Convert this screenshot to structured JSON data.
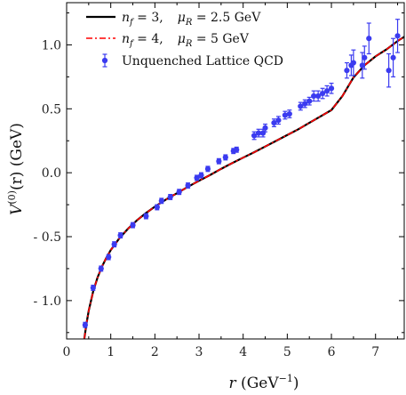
{
  "chart_data": {
    "type": "line",
    "xlabel": "r (GeV⁻¹)",
    "xlabel_parts": {
      "var": "r",
      "unit_open": " (GeV",
      "unit_exp": "−1",
      "unit_close": ")"
    },
    "ylabel": "V⁽⁰⁾(r) (GeV)",
    "ylabel_parts": {
      "main": "V",
      "sup": "(0)",
      "rest": "(r) (GeV)"
    },
    "xlim": [
      0,
      7.65
    ],
    "ylim": [
      -1.3,
      1.33
    ],
    "x_ticks": [
      0,
      1,
      2,
      3,
      4,
      5,
      6,
      7
    ],
    "x_tick_labels": [
      "0",
      "1",
      "2",
      "3",
      "4",
      "5",
      "6",
      "7"
    ],
    "y_ticks": [
      -1.0,
      -0.5,
      0.0,
      0.5,
      1.0
    ],
    "y_tick_labels": [
      "- 1.0",
      "- 0.5",
      "0.0",
      "0.5",
      "1.0"
    ],
    "grid": false,
    "legend_position": "top-left",
    "series": [
      {
        "name": "n_f = 3,    μ_R = 2.5 GeV",
        "label_parts": {
          "n": "n",
          "sub": "f",
          "eq": " = 3,",
          "mu": "μ",
          "musub": "R",
          "rest": " = 2.5 GeV"
        },
        "kind": "line",
        "style": "solid",
        "color": "#000000",
        "x": [
          0.4,
          0.45,
          0.5,
          0.6,
          0.7,
          0.8,
          0.9,
          1.0,
          1.2,
          1.4,
          1.6,
          1.8,
          2.0,
          2.25,
          2.5,
          2.75,
          3.0,
          3.25,
          3.5,
          3.75,
          4.0,
          4.25,
          4.5,
          4.75,
          5.0,
          5.25,
          5.5,
          5.75,
          6.0,
          6.25,
          6.5,
          6.75,
          7.0,
          7.25,
          7.5,
          7.65
        ],
        "y": [
          -1.3,
          -1.18,
          -1.08,
          -0.93,
          -0.82,
          -0.735,
          -0.665,
          -0.605,
          -0.51,
          -0.435,
          -0.37,
          -0.315,
          -0.265,
          -0.21,
          -0.16,
          -0.11,
          -0.063,
          -0.018,
          0.03,
          0.075,
          0.118,
          0.16,
          0.205,
          0.25,
          0.295,
          0.34,
          0.39,
          0.44,
          0.49,
          0.6,
          0.745,
          0.84,
          0.91,
          0.965,
          1.03,
          1.063
        ]
      },
      {
        "name": "n_f = 4,    μ_R = 5 GeV",
        "label_parts": {
          "n": "n",
          "sub": "f",
          "eq": " = 4,",
          "mu": "μ",
          "musub": "R",
          "rest": " = 5 GeV"
        },
        "kind": "line",
        "style": "dashdot",
        "color": "#ff0000",
        "x": [
          0.4,
          0.45,
          0.5,
          0.6,
          0.7,
          0.8,
          0.9,
          1.0,
          1.2,
          1.4,
          1.6,
          1.8,
          2.0,
          2.25,
          2.5,
          2.75,
          3.0,
          3.25,
          3.5,
          3.75,
          4.0,
          4.25,
          4.5,
          4.75,
          5.0,
          5.25,
          5.5,
          5.75,
          6.0,
          6.25,
          6.5,
          6.75,
          7.0,
          7.25,
          7.5,
          7.65
        ],
        "y": [
          -1.3,
          -1.18,
          -1.08,
          -0.93,
          -0.82,
          -0.735,
          -0.665,
          -0.605,
          -0.51,
          -0.435,
          -0.37,
          -0.315,
          -0.265,
          -0.21,
          -0.16,
          -0.11,
          -0.063,
          -0.018,
          0.03,
          0.075,
          0.118,
          0.16,
          0.205,
          0.25,
          0.295,
          0.34,
          0.39,
          0.44,
          0.49,
          0.6,
          0.745,
          0.84,
          0.91,
          0.965,
          1.03,
          1.063
        ]
      },
      {
        "name": "Unquenched Lattice QCD",
        "kind": "scatter_errorbar",
        "color": "#3b3bf0",
        "x": [
          0.42,
          0.6,
          0.78,
          0.95,
          1.08,
          1.22,
          1.5,
          1.8,
          2.05,
          2.15,
          2.35,
          2.55,
          2.75,
          2.95,
          3.05,
          3.2,
          3.45,
          3.6,
          3.78,
          3.85,
          4.25,
          4.35,
          4.45,
          4.5,
          4.7,
          4.8,
          4.95,
          5.05,
          5.3,
          5.4,
          5.5,
          5.6,
          5.7,
          5.8,
          5.9,
          6.0,
          6.35,
          6.45,
          6.5,
          6.7,
          6.75,
          6.85,
          7.3,
          7.4,
          7.5
        ],
        "y": [
          -1.19,
          -0.9,
          -0.75,
          -0.66,
          -0.56,
          -0.49,
          -0.41,
          -0.34,
          -0.27,
          -0.22,
          -0.19,
          -0.15,
          -0.1,
          -0.04,
          -0.02,
          0.03,
          0.09,
          0.12,
          0.17,
          0.18,
          0.29,
          0.31,
          0.31,
          0.35,
          0.39,
          0.41,
          0.45,
          0.46,
          0.52,
          0.54,
          0.56,
          0.6,
          0.6,
          0.62,
          0.64,
          0.66,
          0.8,
          0.84,
          0.86,
          0.84,
          0.9,
          1.05,
          0.8,
          0.9,
          1.07
        ],
        "err": [
          0.02,
          0.02,
          0.02,
          0.02,
          0.02,
          0.02,
          0.02,
          0.02,
          0.02,
          0.02,
          0.02,
          0.02,
          0.02,
          0.02,
          0.02,
          0.02,
          0.02,
          0.02,
          0.02,
          0.02,
          0.03,
          0.03,
          0.03,
          0.03,
          0.03,
          0.03,
          0.03,
          0.03,
          0.03,
          0.03,
          0.03,
          0.04,
          0.04,
          0.04,
          0.04,
          0.04,
          0.06,
          0.08,
          0.1,
          0.1,
          0.09,
          0.12,
          0.13,
          0.15,
          0.13
        ]
      }
    ]
  }
}
